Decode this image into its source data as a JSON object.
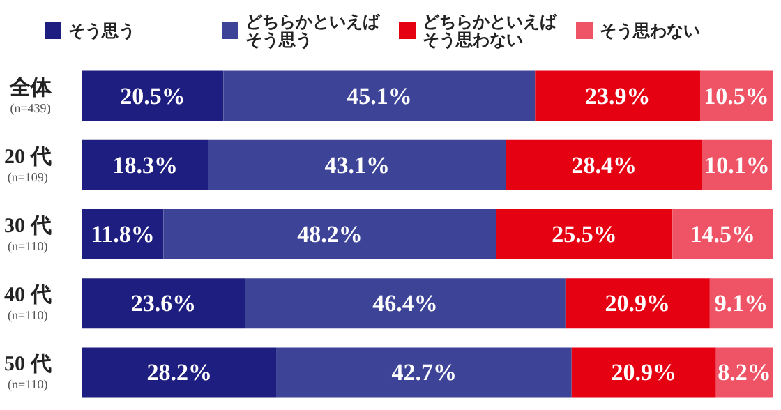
{
  "chart_data": {
    "type": "bar",
    "orientation": "horizontal",
    "stacked": true,
    "legend": "top",
    "categories": [
      "全体\n(n=439)",
      "20 代\n(n=109)",
      "30 代\n(n=110)",
      "40 代\n(n=110)",
      "50 代\n(n=110)"
    ],
    "series": [
      {
        "name": "そう思う",
        "color": "#1e1e80",
        "values": [
          20.5,
          18.3,
          11.8,
          23.6,
          28.2
        ],
        "value_labels": [
          "20.5%",
          "18.3%",
          "11.8%",
          "23.6%",
          "28.2%"
        ]
      },
      {
        "name": "どちらかといえばそう思う",
        "color": "#3d4497",
        "values": [
          45.1,
          43.1,
          48.2,
          46.4,
          42.7
        ],
        "value_labels": [
          "45.1%",
          "43.1%",
          "48.2%",
          "46.4%",
          "42.7%"
        ]
      },
      {
        "name": "どちらかといえばそう思わない",
        "color": "#e50012",
        "values": [
          23.9,
          28.4,
          25.5,
          20.9,
          20.9
        ],
        "value_labels": [
          "23.9%",
          "28.4%",
          "25.5%",
          "20.9%",
          "20.9%"
        ]
      },
      {
        "name": "そう思わない",
        "color": "#ef5366",
        "values": [
          10.5,
          10.1,
          14.5,
          9.1,
          8.2
        ],
        "value_labels": [
          "10.5%",
          "10.1%",
          "14.5%",
          "9.1%",
          "8.2%"
        ]
      }
    ]
  }
}
